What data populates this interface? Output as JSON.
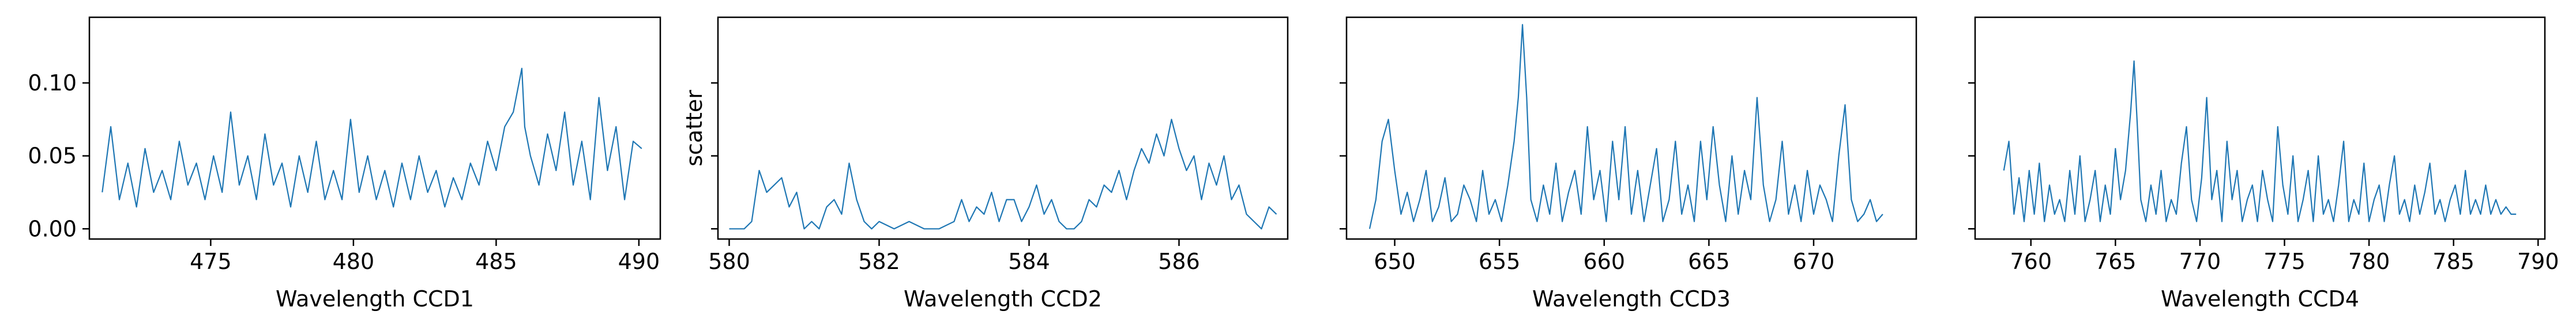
{
  "chart_data": [
    {
      "type": "line",
      "xlabel": "Wavelength CCD1",
      "ylabel": "",
      "xlim": [
        470.75,
        490.75
      ],
      "ylim": [
        -0.007,
        0.145
      ],
      "xticks": [
        475,
        480,
        485,
        490
      ],
      "xtick_labels": [
        "475",
        "480",
        "485",
        "490"
      ],
      "yticks": [
        0.0,
        0.05,
        0.1
      ],
      "ytick_labels": [
        "0.00",
        "0.05",
        "0.10"
      ],
      "grid": false,
      "series": [
        {
          "color": "#1f77b4",
          "x": [
            471.2,
            471.5,
            471.8,
            472.1,
            472.4,
            472.7,
            473.0,
            473.3,
            473.6,
            473.9,
            474.2,
            474.5,
            474.8,
            475.1,
            475.4,
            475.7,
            476.0,
            476.3,
            476.6,
            476.9,
            477.2,
            477.5,
            477.8,
            478.1,
            478.4,
            478.7,
            479.0,
            479.3,
            479.6,
            479.9,
            480.2,
            480.5,
            480.8,
            481.1,
            481.4,
            481.7,
            482.0,
            482.3,
            482.6,
            482.9,
            483.2,
            483.5,
            483.8,
            484.1,
            484.4,
            484.7,
            485.0,
            485.3,
            485.6,
            485.9,
            486.0,
            486.2,
            486.5,
            486.8,
            487.1,
            487.4,
            487.7,
            488.0,
            488.3,
            488.6,
            488.9,
            489.2,
            489.5,
            489.8,
            490.1
          ],
          "y": [
            0.025,
            0.07,
            0.02,
            0.045,
            0.015,
            0.055,
            0.025,
            0.04,
            0.02,
            0.06,
            0.03,
            0.045,
            0.02,
            0.05,
            0.025,
            0.08,
            0.03,
            0.05,
            0.02,
            0.065,
            0.03,
            0.045,
            0.015,
            0.05,
            0.025,
            0.06,
            0.02,
            0.04,
            0.02,
            0.075,
            0.025,
            0.05,
            0.02,
            0.04,
            0.015,
            0.045,
            0.02,
            0.05,
            0.025,
            0.04,
            0.015,
            0.035,
            0.02,
            0.045,
            0.03,
            0.06,
            0.04,
            0.07,
            0.08,
            0.11,
            0.07,
            0.05,
            0.03,
            0.065,
            0.04,
            0.08,
            0.03,
            0.06,
            0.02,
            0.09,
            0.04,
            0.07,
            0.02,
            0.06,
            0.055
          ]
        }
      ]
    },
    {
      "type": "line",
      "xlabel": "Wavelength CCD2",
      "ylabel": "scatter",
      "xlim": [
        579.85,
        587.45
      ],
      "ylim": [
        -0.007,
        0.145
      ],
      "xticks": [
        580,
        582,
        584,
        586
      ],
      "xtick_labels": [
        "580",
        "582",
        "584",
        "586"
      ],
      "yticks": [
        0.0,
        0.05,
        0.1
      ],
      "ytick_labels": [],
      "grid": false,
      "series": [
        {
          "color": "#1f77b4",
          "x": [
            580.0,
            580.2,
            580.3,
            580.4,
            580.5,
            580.6,
            580.7,
            580.8,
            580.9,
            581.0,
            581.1,
            581.2,
            581.3,
            581.4,
            581.5,
            581.6,
            581.7,
            581.8,
            581.9,
            582.0,
            582.2,
            582.4,
            582.6,
            582.8,
            583.0,
            583.1,
            583.2,
            583.3,
            583.4,
            583.5,
            583.6,
            583.7,
            583.8,
            583.9,
            584.0,
            584.1,
            584.2,
            584.3,
            584.4,
            584.5,
            584.6,
            584.7,
            584.8,
            584.9,
            585.0,
            585.1,
            585.2,
            585.3,
            585.4,
            585.5,
            585.6,
            585.7,
            585.8,
            585.9,
            586.0,
            586.1,
            586.2,
            586.3,
            586.4,
            586.5,
            586.6,
            586.7,
            586.8,
            586.9,
            587.0,
            587.1,
            587.2,
            587.3
          ],
          "y": [
            0.0,
            0.0,
            0.005,
            0.04,
            0.025,
            0.03,
            0.035,
            0.015,
            0.025,
            0.0,
            0.005,
            0.0,
            0.015,
            0.02,
            0.01,
            0.045,
            0.02,
            0.005,
            0.0,
            0.005,
            0.0,
            0.005,
            0.0,
            0.0,
            0.005,
            0.02,
            0.005,
            0.015,
            0.01,
            0.025,
            0.005,
            0.02,
            0.02,
            0.005,
            0.015,
            0.03,
            0.01,
            0.02,
            0.005,
            0.0,
            0.0,
            0.005,
            0.02,
            0.015,
            0.03,
            0.025,
            0.04,
            0.02,
            0.04,
            0.055,
            0.045,
            0.065,
            0.05,
            0.075,
            0.055,
            0.04,
            0.05,
            0.02,
            0.045,
            0.03,
            0.05,
            0.02,
            0.03,
            0.01,
            0.005,
            0.0,
            0.015,
            0.01
          ]
        }
      ]
    },
    {
      "type": "line",
      "xlabel": "Wavelength CCD3",
      "ylabel": "",
      "xlim": [
        647.7,
        674.9
      ],
      "ylim": [
        -0.007,
        0.145
      ],
      "xticks": [
        650,
        655,
        660,
        665,
        670
      ],
      "xtick_labels": [
        "650",
        "655",
        "660",
        "665",
        "670"
      ],
      "yticks": [
        0.0,
        0.05,
        0.1
      ],
      "ytick_labels": [],
      "grid": false,
      "series": [
        {
          "color": "#1f77b4",
          "x": [
            648.8,
            649.1,
            649.4,
            649.7,
            650.0,
            650.3,
            650.6,
            650.9,
            651.2,
            651.5,
            651.8,
            652.1,
            652.4,
            652.7,
            653.0,
            653.3,
            653.6,
            653.9,
            654.2,
            654.5,
            654.8,
            655.1,
            655.4,
            655.7,
            655.9,
            656.1,
            656.3,
            656.5,
            656.8,
            657.1,
            657.4,
            657.7,
            658.0,
            658.3,
            658.6,
            658.9,
            659.2,
            659.5,
            659.8,
            660.1,
            660.4,
            660.7,
            661.0,
            661.3,
            661.6,
            661.9,
            662.2,
            662.5,
            662.8,
            663.1,
            663.4,
            663.7,
            664.0,
            664.3,
            664.6,
            664.9,
            665.2,
            665.5,
            665.8,
            666.1,
            666.4,
            666.7,
            667.0,
            667.3,
            667.6,
            667.9,
            668.2,
            668.5,
            668.8,
            669.1,
            669.4,
            669.7,
            670.0,
            670.3,
            670.6,
            670.9,
            671.2,
            671.5,
            671.8,
            672.1,
            672.4,
            672.7,
            673.0,
            673.3
          ],
          "y": [
            0.0,
            0.02,
            0.06,
            0.075,
            0.04,
            0.01,
            0.025,
            0.005,
            0.02,
            0.04,
            0.005,
            0.015,
            0.035,
            0.005,
            0.01,
            0.03,
            0.02,
            0.005,
            0.04,
            0.01,
            0.02,
            0.005,
            0.03,
            0.06,
            0.09,
            0.14,
            0.09,
            0.02,
            0.005,
            0.03,
            0.01,
            0.045,
            0.005,
            0.025,
            0.04,
            0.01,
            0.07,
            0.02,
            0.04,
            0.005,
            0.06,
            0.02,
            0.07,
            0.01,
            0.04,
            0.005,
            0.03,
            0.055,
            0.005,
            0.02,
            0.06,
            0.01,
            0.03,
            0.005,
            0.06,
            0.02,
            0.07,
            0.03,
            0.005,
            0.05,
            0.01,
            0.04,
            0.02,
            0.09,
            0.03,
            0.005,
            0.02,
            0.06,
            0.01,
            0.03,
            0.005,
            0.04,
            0.01,
            0.03,
            0.02,
            0.005,
            0.05,
            0.085,
            0.02,
            0.005,
            0.01,
            0.02,
            0.005,
            0.01
          ]
        }
      ]
    },
    {
      "type": "line",
      "xlabel": "Wavelength CCD4",
      "ylabel": "",
      "xlim": [
        756.7,
        790.4
      ],
      "ylim": [
        -0.007,
        0.145
      ],
      "xticks": [
        760,
        765,
        770,
        775,
        780,
        785,
        790
      ],
      "xtick_labels": [
        "760",
        "765",
        "770",
        "775",
        "780",
        "785",
        "790"
      ],
      "yticks": [
        0.0,
        0.05,
        0.1
      ],
      "ytick_labels": [],
      "grid": false,
      "series": [
        {
          "color": "#1f77b4",
          "x": [
            758.4,
            758.7,
            759.0,
            759.3,
            759.6,
            759.9,
            760.2,
            760.5,
            760.8,
            761.1,
            761.4,
            761.7,
            762.0,
            762.3,
            762.6,
            762.9,
            763.2,
            763.5,
            763.8,
            764.1,
            764.4,
            764.7,
            765.0,
            765.3,
            765.6,
            765.9,
            766.1,
            766.3,
            766.5,
            766.8,
            767.1,
            767.4,
            767.7,
            768.0,
            768.3,
            768.6,
            768.9,
            769.2,
            769.5,
            769.8,
            770.1,
            770.4,
            770.7,
            771.0,
            771.3,
            771.6,
            771.9,
            772.2,
            772.5,
            772.8,
            773.1,
            773.4,
            773.7,
            774.0,
            774.3,
            774.6,
            774.9,
            775.2,
            775.5,
            775.8,
            776.1,
            776.4,
            776.7,
            777.0,
            777.3,
            777.6,
            777.9,
            778.2,
            778.5,
            778.8,
            779.1,
            779.4,
            779.7,
            780.0,
            780.3,
            780.6,
            780.9,
            781.2,
            781.5,
            781.8,
            782.1,
            782.4,
            782.7,
            783.0,
            783.3,
            783.6,
            783.9,
            784.2,
            784.5,
            784.8,
            785.1,
            785.4,
            785.7,
            786.0,
            786.3,
            786.6,
            786.9,
            787.2,
            787.5,
            787.8,
            788.1,
            788.4,
            788.7
          ],
          "y": [
            0.04,
            0.06,
            0.01,
            0.035,
            0.005,
            0.04,
            0.01,
            0.045,
            0.005,
            0.03,
            0.01,
            0.02,
            0.005,
            0.04,
            0.01,
            0.05,
            0.005,
            0.02,
            0.04,
            0.005,
            0.03,
            0.01,
            0.055,
            0.02,
            0.04,
            0.08,
            0.115,
            0.07,
            0.02,
            0.005,
            0.03,
            0.01,
            0.04,
            0.005,
            0.02,
            0.01,
            0.045,
            0.07,
            0.02,
            0.005,
            0.035,
            0.09,
            0.02,
            0.04,
            0.005,
            0.06,
            0.02,
            0.04,
            0.005,
            0.02,
            0.03,
            0.005,
            0.04,
            0.02,
            0.005,
            0.07,
            0.03,
            0.01,
            0.05,
            0.005,
            0.02,
            0.04,
            0.005,
            0.05,
            0.01,
            0.02,
            0.005,
            0.03,
            0.06,
            0.005,
            0.02,
            0.01,
            0.045,
            0.005,
            0.02,
            0.03,
            0.005,
            0.03,
            0.05,
            0.01,
            0.02,
            0.005,
            0.03,
            0.01,
            0.025,
            0.045,
            0.01,
            0.02,
            0.005,
            0.02,
            0.03,
            0.01,
            0.04,
            0.01,
            0.02,
            0.01,
            0.03,
            0.01,
            0.02,
            0.01,
            0.015,
            0.01,
            0.01
          ]
        }
      ]
    }
  ]
}
